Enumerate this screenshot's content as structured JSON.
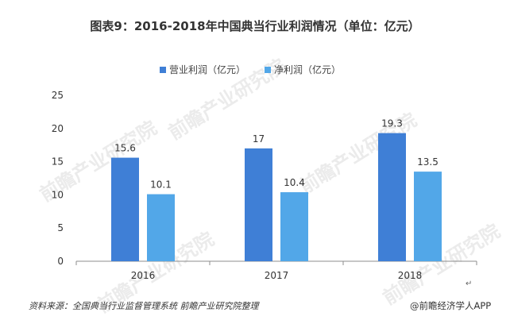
{
  "title": "图表9：2016-2018年中国典当行业利润情况（单位：亿元）",
  "source": "资料来源：全国典当行业监督管理系统 前瞻产业研究院整理",
  "brand": "@前瞻经济学人APP",
  "watermark": "前瞻产业研究院",
  "return_mark": "↵",
  "colors": {
    "series1": "#3F7FD6",
    "series2": "#52A7E8",
    "axis": "#8c8c8c"
  },
  "chart_data": {
    "type": "bar",
    "title": "图表9：2016-2018年中国典当行业利润情况（单位：亿元）",
    "categories": [
      "2016",
      "2017",
      "2018"
    ],
    "series": [
      {
        "name": "营业利润（亿元）",
        "values": [
          15.6,
          17,
          19.3
        ]
      },
      {
        "name": "净利润（亿元）",
        "values": [
          10.1,
          10.4,
          13.5
        ]
      }
    ],
    "ylim": [
      0,
      25
    ],
    "yticks": [
      0,
      5,
      10,
      15,
      20,
      25
    ],
    "legend": "top-center",
    "grid": false
  }
}
